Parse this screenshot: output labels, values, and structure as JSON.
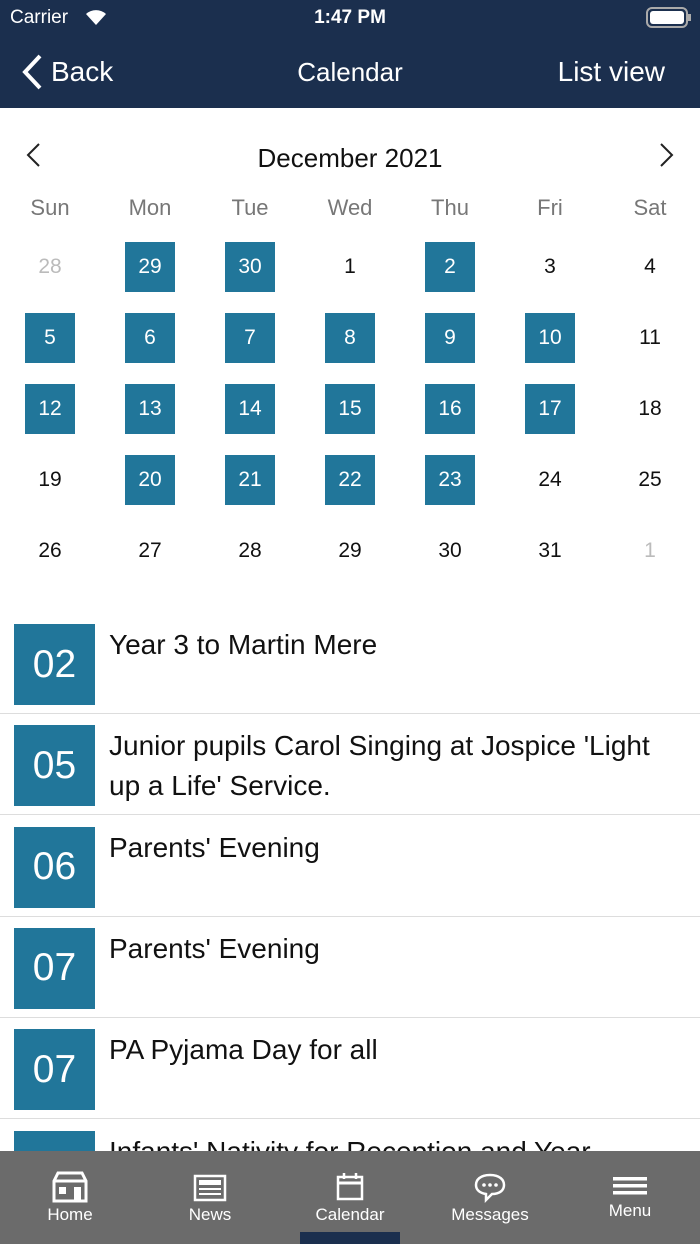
{
  "status_bar": {
    "carrier": "Carrier",
    "time": "1:47 PM"
  },
  "nav_bar": {
    "back": "Back",
    "title": "Calendar",
    "right": "List view"
  },
  "calendar": {
    "month": "December 2021",
    "weekdays": [
      "Sun",
      "Mon",
      "Tue",
      "Wed",
      "Thu",
      "Fri",
      "Sat"
    ],
    "weeks": [
      [
        {
          "day": "28",
          "muted": true
        },
        {
          "day": "29",
          "event": true
        },
        {
          "day": "30",
          "event": true
        },
        {
          "day": "1"
        },
        {
          "day": "2",
          "event": true
        },
        {
          "day": "3"
        },
        {
          "day": "4"
        }
      ],
      [
        {
          "day": "5",
          "event": true
        },
        {
          "day": "6",
          "event": true
        },
        {
          "day": "7",
          "event": true
        },
        {
          "day": "8",
          "event": true
        },
        {
          "day": "9",
          "event": true
        },
        {
          "day": "10",
          "event": true
        },
        {
          "day": "11"
        }
      ],
      [
        {
          "day": "12",
          "event": true
        },
        {
          "day": "13",
          "event": true
        },
        {
          "day": "14",
          "event": true
        },
        {
          "day": "15",
          "event": true
        },
        {
          "day": "16",
          "event": true
        },
        {
          "day": "17",
          "event": true
        },
        {
          "day": "18"
        }
      ],
      [
        {
          "day": "19"
        },
        {
          "day": "20",
          "event": true
        },
        {
          "day": "21",
          "event": true
        },
        {
          "day": "22",
          "event": true
        },
        {
          "day": "23",
          "event": true
        },
        {
          "day": "24"
        },
        {
          "day": "25"
        }
      ],
      [
        {
          "day": "26"
        },
        {
          "day": "27"
        },
        {
          "day": "28"
        },
        {
          "day": "29"
        },
        {
          "day": "30"
        },
        {
          "day": "31"
        },
        {
          "day": "1",
          "muted": true
        }
      ]
    ]
  },
  "events": [
    {
      "date": "02",
      "title": "Year 3 to Martin Mere"
    },
    {
      "date": "05",
      "title": "Junior pupils Carol Singing at Jospice 'Light up a Life' Service."
    },
    {
      "date": "06",
      "title": "Parents' Evening"
    },
    {
      "date": "07",
      "title": "Parents' Evening"
    },
    {
      "date": "07",
      "title": "PA Pyjama Day for all"
    },
    {
      "title": "Infants' Nativity for Reception and Year"
    }
  ],
  "tab_bar": {
    "tabs": [
      {
        "label": "Home"
      },
      {
        "label": "News"
      },
      {
        "label": "Calendar"
      },
      {
        "label": "Messages"
      },
      {
        "label": "Menu"
      }
    ],
    "active": 2
  }
}
